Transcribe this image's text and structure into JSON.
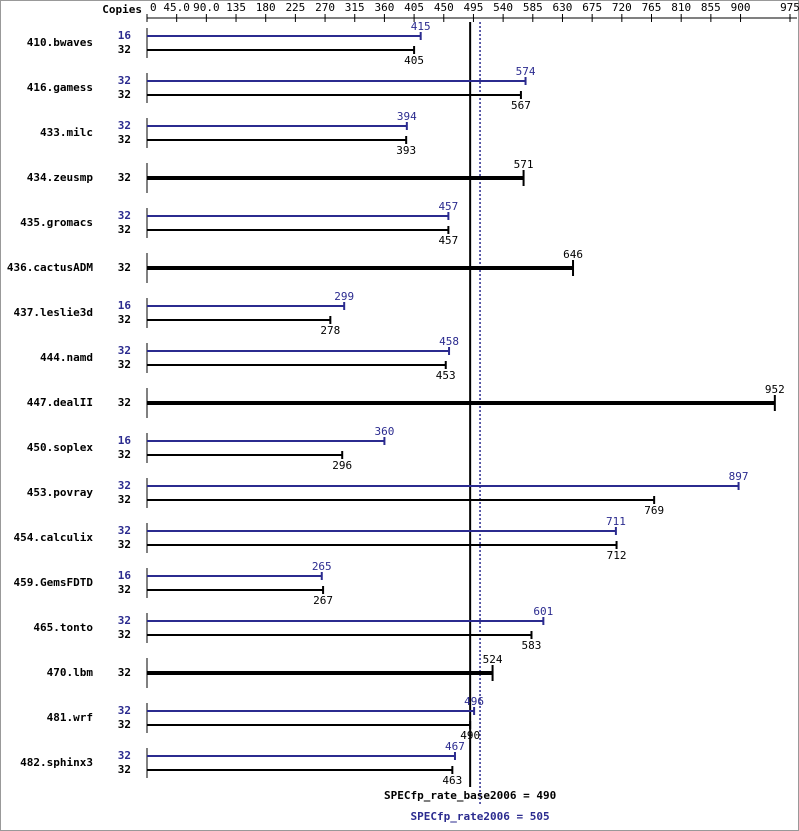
{
  "chart_data": {
    "type": "bar",
    "orientation": "horizontal",
    "copies_label": "Copies",
    "categories": [
      "410.bwaves",
      "416.gamess",
      "433.milc",
      "434.zeusmp",
      "435.gromacs",
      "436.cactusADM",
      "437.leslie3d",
      "444.namd",
      "447.dealII",
      "450.soplex",
      "453.povray",
      "454.calculix",
      "459.GemsFDTD",
      "465.tonto",
      "470.lbm",
      "481.wrf",
      "482.sphinx3"
    ],
    "series": [
      {
        "color": "#2b2b8f",
        "copies": [
          16,
          32,
          32,
          null,
          32,
          null,
          16,
          32,
          null,
          16,
          32,
          32,
          16,
          32,
          null,
          32,
          32
        ],
        "values": [
          415,
          574,
          394,
          null,
          457,
          null,
          299,
          458,
          null,
          360,
          897,
          711,
          265,
          601,
          null,
          496,
          467
        ]
      },
      {
        "color": "#000000",
        "copies": [
          32,
          32,
          32,
          32,
          32,
          32,
          32,
          32,
          32,
          32,
          32,
          32,
          32,
          32,
          32,
          32,
          32
        ],
        "values": [
          405,
          567,
          393,
          571,
          457,
          646,
          278,
          453,
          952,
          296,
          769,
          712,
          267,
          583,
          524,
          490,
          463
        ]
      }
    ],
    "xlim": [
      0,
      975
    ],
    "xticks": [
      0,
      {
        "value": 45,
        "label": "45.0"
      },
      {
        "value": 90,
        "label": "90.0"
      },
      135,
      180,
      225,
      270,
      315,
      360,
      405,
      450,
      495,
      540,
      585,
      630,
      675,
      720,
      765,
      810,
      855,
      900,
      975
    ],
    "reference_lines": [
      {
        "value": 490,
        "label": "SPECfp_rate_base2006 = 490",
        "color": "#000000",
        "dashed": false
      },
      {
        "value": 505,
        "label": "SPECfp_rate2006 = 505",
        "color": "#2b2b8f",
        "dashed": true
      }
    ]
  }
}
